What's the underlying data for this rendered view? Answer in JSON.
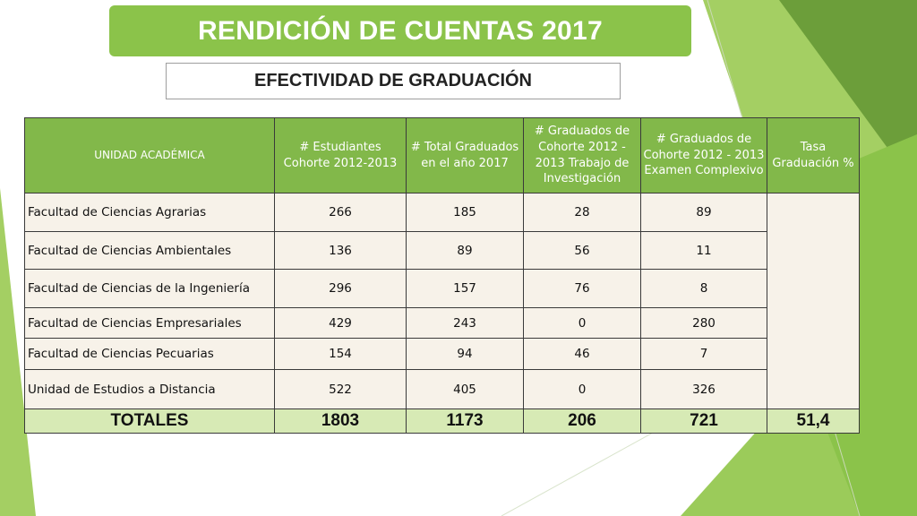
{
  "header": {
    "title": "RENDICIÓN DE CUENTAS 2017",
    "subtitle": "EFECTIVIDAD DE GRADUACIÓN"
  },
  "colors": {
    "banner": "#8bc34a",
    "table_header": "#82b84a",
    "table_body": "#f7f2e9",
    "table_totals": "#d7eab5",
    "decoration_light": "#a4cf63",
    "decoration_dark": "#6c9e3a"
  },
  "table": {
    "columns": [
      "UNIDAD ACADÉMICA",
      "# Estudiantes Cohorte 2012-2013",
      "# Total Graduados en el año 2017",
      "# Graduados de Cohorte 2012 - 2013 Trabajo de Investigación",
      "# Graduados de Cohorte 2012 - 2013 Examen Complexivo",
      "Tasa Graduación %"
    ],
    "rows": [
      {
        "unit": "Facultad de Ciencias Agrarias",
        "students": "266",
        "total_grad": "185",
        "grad_research": "28",
        "grad_exam": "89"
      },
      {
        "unit": "Facultad de Ciencias Ambientales",
        "students": "136",
        "total_grad": "89",
        "grad_research": "56",
        "grad_exam": "11"
      },
      {
        "unit": "Facultad de Ciencias de la Ingeniería",
        "students": "296",
        "total_grad": "157",
        "grad_research": "76",
        "grad_exam": "8"
      },
      {
        "unit": "Facultad de Ciencias Empresariales",
        "students": "429",
        "total_grad": "243",
        "grad_research": "0",
        "grad_exam": "280"
      },
      {
        "unit": "Facultad de Ciencias Pecuarias",
        "students": "154",
        "total_grad": "94",
        "grad_research": "46",
        "grad_exam": "7"
      },
      {
        "unit": "Unidad de Estudios a Distancia",
        "students": "522",
        "total_grad": "405",
        "grad_research": "0",
        "grad_exam": "326"
      }
    ],
    "totals": {
      "label": "TOTALES",
      "students": "1803",
      "total_grad": "1173",
      "grad_research": "206",
      "grad_exam": "721",
      "rate": "51,4"
    }
  }
}
